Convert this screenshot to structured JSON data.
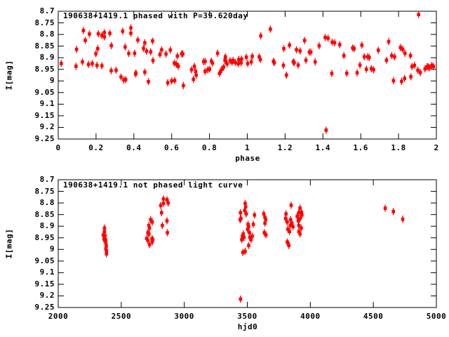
{
  "colors": {
    "point": "#ff0000",
    "axis": "#000000",
    "background": "#ffffff"
  },
  "chart_data": [
    {
      "type": "scatter",
      "title": "190638+1419.1 phased with P=39.620day",
      "xlabel": "phase",
      "ylabel": "I[mag]",
      "xlim": [
        0,
        2
      ],
      "ylim": [
        8.7,
        9.25
      ],
      "y_axis_inverted": true,
      "grid": false,
      "legend": "none",
      "marker": "red filled square with vertical error bar",
      "xticks": [
        0,
        0.2,
        0.4,
        0.6,
        0.8,
        1,
        1.2,
        1.4,
        1.6,
        1.8,
        2
      ],
      "xtick_labels": [
        "0",
        "0.2",
        "0.4",
        "0.6",
        "0.8",
        "1",
        "1.2",
        "1.4",
        "1.6",
        "1.8",
        "2"
      ],
      "yticks": [
        8.7,
        8.75,
        8.8,
        8.85,
        8.9,
        8.95,
        9,
        9.05,
        9.1,
        9.15,
        9.2,
        9.25
      ],
      "ytick_labels": [
        "8.7",
        "8.75",
        "8.8",
        "8.85",
        "8.9",
        "8.95",
        "9",
        "9.05",
        "9.1",
        "9.15",
        "9.2",
        "9.25"
      ],
      "points": [
        [
          0.016,
          8.925
        ],
        [
          0.094,
          8.937
        ],
        [
          0.097,
          8.864
        ],
        [
          0.128,
          8.918
        ],
        [
          0.133,
          8.783
        ],
        [
          0.143,
          8.826
        ],
        [
          0.16,
          8.929
        ],
        [
          0.165,
          8.798
        ],
        [
          0.18,
          8.925
        ],
        [
          0.199,
          8.883
        ],
        [
          0.205,
          8.933
        ],
        [
          0.209,
          8.861
        ],
        [
          0.212,
          8.797
        ],
        [
          0.231,
          8.804
        ],
        [
          0.231,
          8.935
        ],
        [
          0.244,
          8.792
        ],
        [
          0.244,
          8.81
        ],
        [
          0.273,
          8.795
        ],
        [
          0.28,
          8.956
        ],
        [
          0.281,
          8.848
        ],
        [
          0.306,
          8.954
        ],
        [
          0.332,
          8.983
        ],
        [
          0.341,
          8.786
        ],
        [
          0.347,
          8.996
        ],
        [
          0.354,
          8.854
        ],
        [
          0.357,
          8.994
        ],
        [
          0.373,
          8.882
        ],
        [
          0.384,
          8.772
        ],
        [
          0.384,
          8.795
        ],
        [
          0.404,
          8.881
        ],
        [
          0.409,
          8.97
        ],
        [
          0.411,
          8.966
        ],
        [
          0.421,
          8.824
        ],
        [
          0.451,
          8.86
        ],
        [
          0.458,
          8.836
        ],
        [
          0.458,
          8.962
        ],
        [
          0.467,
          8.872
        ],
        [
          0.477,
          9.003
        ],
        [
          0.489,
          8.875
        ],
        [
          0.499,
          8.828
        ],
        [
          0.501,
          8.912
        ],
        [
          0.538,
          8.886
        ],
        [
          0.547,
          8.866
        ],
        [
          0.57,
          8.884
        ],
        [
          0.579,
          9.008
        ],
        [
          0.593,
          8.867
        ],
        [
          0.6,
          9.0
        ],
        [
          0.614,
          8.923
        ],
        [
          0.616,
          8.998
        ],
        [
          0.625,
          8.928
        ],
        [
          0.63,
          8.893
        ],
        [
          0.635,
          8.937
        ],
        [
          0.653,
          8.883
        ],
        [
          0.659,
          8.884
        ],
        [
          0.662,
          9.02
        ],
        [
          0.705,
          8.952
        ],
        [
          0.715,
          8.993
        ],
        [
          0.72,
          8.937
        ],
        [
          0.727,
          8.959
        ],
        [
          0.73,
          8.975
        ],
        [
          0.769,
          8.917
        ],
        [
          0.777,
          8.916
        ],
        [
          0.777,
          8.959
        ],
        [
          0.791,
          8.952
        ],
        [
          0.801,
          8.949
        ],
        [
          0.81,
          8.915
        ],
        [
          0.816,
          8.923
        ],
        [
          0.843,
          8.881
        ],
        [
          0.853,
          8.968
        ],
        [
          0.859,
          8.959
        ],
        [
          0.865,
          8.95
        ],
        [
          0.875,
          8.94
        ],
        [
          0.882,
          8.912
        ],
        [
          0.884,
          8.896
        ],
        [
          0.884,
          8.908
        ],
        [
          0.893,
          8.926
        ],
        [
          0.909,
          8.913
        ],
        [
          0.919,
          8.919
        ],
        [
          0.925,
          8.912
        ],
        [
          0.937,
          8.921
        ],
        [
          0.952,
          8.926
        ],
        [
          0.955,
          8.908
        ],
        [
          0.967,
          8.922
        ],
        [
          0.97,
          8.906
        ],
        [
          0.995,
          8.898
        ],
        [
          1.002,
          8.925
        ],
        [
          1.021,
          8.918
        ],
        [
          1.026,
          8.894
        ],
        [
          1.063,
          8.896
        ],
        [
          1.069,
          8.908
        ],
        [
          1.071,
          8.806
        ],
        [
          1.122,
          8.777
        ],
        [
          1.138,
          8.916
        ],
        [
          1.143,
          8.921
        ],
        [
          1.191,
          8.933
        ],
        [
          1.193,
          8.861
        ],
        [
          1.207,
          8.975
        ],
        [
          1.223,
          8.846
        ],
        [
          1.243,
          8.918
        ],
        [
          1.248,
          8.921
        ],
        [
          1.26,
          8.866
        ],
        [
          1.269,
          8.932
        ],
        [
          1.279,
          8.871
        ],
        [
          1.303,
          8.826
        ],
        [
          1.31,
          8.911
        ],
        [
          1.328,
          8.876
        ],
        [
          1.336,
          8.876
        ],
        [
          1.359,
          8.918
        ],
        [
          1.38,
          8.849
        ],
        [
          1.412,
          8.813
        ],
        [
          1.417,
          9.212
        ],
        [
          1.427,
          8.816
        ],
        [
          1.447,
          8.968
        ],
        [
          1.449,
          8.833
        ],
        [
          1.462,
          8.836
        ],
        [
          1.489,
          8.844
        ],
        [
          1.511,
          8.891
        ],
        [
          1.526,
          8.967
        ],
        [
          1.557,
          8.858
        ],
        [
          1.565,
          8.861
        ],
        [
          1.581,
          8.965
        ],
        [
          1.596,
          8.932
        ],
        [
          1.606,
          8.846
        ],
        [
          1.619,
          8.896
        ],
        [
          1.63,
          8.95
        ],
        [
          1.637,
          8.896
        ],
        [
          1.645,
          8.899
        ],
        [
          1.656,
          8.947
        ],
        [
          1.668,
          8.952
        ],
        [
          1.693,
          8.868
        ],
        [
          1.736,
          8.911
        ],
        [
          1.748,
          8.831
        ],
        [
          1.764,
          8.891
        ],
        [
          1.773,
          8.999
        ],
        [
          1.779,
          8.896
        ],
        [
          1.81,
          8.856
        ],
        [
          1.816,
          9.002
        ],
        [
          1.822,
          8.864
        ],
        [
          1.832,
          8.989
        ],
        [
          1.834,
          8.881
        ],
        [
          1.863,
          8.891
        ],
        [
          1.865,
          8.982
        ],
        [
          1.871,
          8.938
        ],
        [
          1.884,
          8.933
        ],
        [
          1.902,
          8.954
        ],
        [
          1.906,
          8.714
        ],
        [
          1.915,
          8.964
        ],
        [
          1.94,
          8.948
        ],
        [
          1.952,
          8.938
        ],
        [
          1.957,
          8.94
        ],
        [
          1.964,
          8.943
        ],
        [
          1.976,
          8.933
        ],
        [
          1.985,
          8.938
        ]
      ]
    },
    {
      "type": "scatter",
      "title": "190638+1419.1 not phased light curve",
      "xlabel": "hjd0",
      "ylabel": "I[mag]",
      "xlim": [
        2000,
        5000
      ],
      "ylim": [
        8.7,
        9.25
      ],
      "y_axis_inverted": true,
      "grid": false,
      "legend": "none",
      "marker": "red filled square with vertical error bar",
      "xticks": [
        2000,
        2500,
        3000,
        3500,
        4000,
        4500,
        5000
      ],
      "xtick_labels": [
        "2000",
        "2500",
        "3000",
        "3500",
        "4000",
        "4500",
        "5000"
      ],
      "yticks": [
        8.7,
        8.75,
        8.8,
        8.85,
        8.9,
        8.95,
        9,
        9.05,
        9.1,
        9.15,
        9.2,
        9.25
      ],
      "ytick_labels": [
        "8.7",
        "8.75",
        "8.8",
        "8.85",
        "8.9",
        "8.95",
        "9",
        "9.05",
        "9.1",
        "9.15",
        "9.2",
        "9.25"
      ],
      "points": [
        [
          2357,
          8.938
        ],
        [
          2363,
          8.955
        ],
        [
          2367,
          8.908
        ],
        [
          2367,
          8.923
        ],
        [
          2370,
          8.962
        ],
        [
          2372,
          8.941
        ],
        [
          2376,
          8.958
        ],
        [
          2378,
          8.973
        ],
        [
          2378,
          8.998
        ],
        [
          2381,
          8.985
        ],
        [
          2383,
          9.006
        ],
        [
          2383,
          9.019
        ],
        [
          2702,
          8.953
        ],
        [
          2711,
          8.928
        ],
        [
          2711,
          8.961
        ],
        [
          2719,
          8.897
        ],
        [
          2720,
          8.933
        ],
        [
          2724,
          8.908
        ],
        [
          2724,
          8.979
        ],
        [
          2733,
          8.872
        ],
        [
          2743,
          8.955
        ],
        [
          2746,
          8.882
        ],
        [
          2746,
          8.968
        ],
        [
          2750,
          8.957
        ],
        [
          2813,
          8.811
        ],
        [
          2820,
          8.842
        ],
        [
          2826,
          8.897
        ],
        [
          2835,
          8.783
        ],
        [
          2835,
          8.801
        ],
        [
          2863,
          8.786
        ],
        [
          2863,
          8.877
        ],
        [
          2866,
          8.928
        ],
        [
          2872,
          8.8
        ],
        [
          3443,
          8.872
        ],
        [
          3446,
          8.842
        ],
        [
          3446,
          9.214
        ],
        [
          3450,
          8.867
        ],
        [
          3456,
          8.958
        ],
        [
          3461,
          8.943
        ],
        [
          3465,
          9.013
        ],
        [
          3468,
          8.933
        ],
        [
          3474,
          8.948
        ],
        [
          3479,
          8.832
        ],
        [
          3483,
          8.802
        ],
        [
          3483,
          9.008
        ],
        [
          3487,
          8.817
        ],
        [
          3492,
          8.847
        ],
        [
          3502,
          8.913
        ],
        [
          3506,
          8.892
        ],
        [
          3511,
          8.902
        ],
        [
          3511,
          8.983
        ],
        [
          3517,
          8.928
        ],
        [
          3520,
          8.948
        ],
        [
          3529,
          8.958
        ],
        [
          3539,
          8.943
        ],
        [
          3548,
          8.892
        ],
        [
          3557,
          8.852
        ],
        [
          3631,
          8.847
        ],
        [
          3635,
          8.928
        ],
        [
          3640,
          8.862
        ],
        [
          3640,
          8.887
        ],
        [
          3646,
          8.872
        ],
        [
          3648,
          8.937
        ],
        [
          3804,
          8.867
        ],
        [
          3807,
          8.847
        ],
        [
          3817,
          8.882
        ],
        [
          3817,
          8.968
        ],
        [
          3822,
          8.913
        ],
        [
          3824,
          8.975
        ],
        [
          3830,
          8.983
        ],
        [
          3835,
          8.923
        ],
        [
          3841,
          8.897
        ],
        [
          3844,
          8.872
        ],
        [
          3848,
          8.81
        ],
        [
          3854,
          8.887
        ],
        [
          3863,
          8.902
        ],
        [
          3896,
          8.857
        ],
        [
          3904,
          8.877
        ],
        [
          3909,
          8.842
        ],
        [
          3909,
          8.897
        ],
        [
          3909,
          8.923
        ],
        [
          3918,
          8.822
        ],
        [
          3918,
          8.867
        ],
        [
          3918,
          8.933
        ],
        [
          3928,
          8.908
        ],
        [
          3930,
          8.84
        ],
        [
          3933,
          8.852
        ],
        [
          4594,
          8.823
        ],
        [
          4659,
          8.837
        ],
        [
          4733,
          8.87
        ]
      ]
    }
  ]
}
